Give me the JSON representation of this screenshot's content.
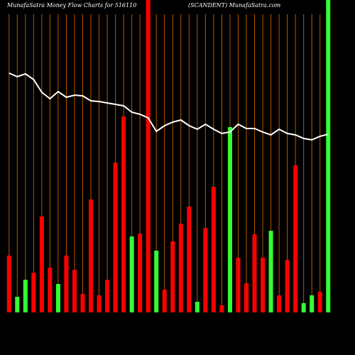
{
  "chart_data": {
    "type": "bar",
    "title": "MunafaSatra  Money Flow  Charts for 516110",
    "subtitle": "(SCANDENT) MunafaSatra.com",
    "categories": [
      null,
      null,
      null,
      null,
      null,
      null,
      null,
      null,
      null,
      null,
      null,
      null,
      null,
      null,
      null,
      null,
      null,
      null,
      null,
      null,
      null,
      null,
      null,
      null,
      null,
      null,
      null,
      null,
      null,
      null,
      null,
      null,
      null,
      null,
      null,
      null,
      null,
      null,
      null,
      null
    ],
    "values": [
      80,
      22,
      46,
      56,
      135,
      63,
      40,
      80,
      60,
      26,
      159,
      24,
      46,
      211,
      276,
      107,
      111,
      440,
      87,
      32,
      100,
      125,
      149,
      15,
      119,
      177,
      10,
      261,
      77,
      41,
      110,
      77,
      115,
      24,
      74,
      207,
      13,
      24,
      29,
      440
    ],
    "colors": [
      "#ff0000",
      "#33ff33",
      "#33ff33",
      "#ff0000",
      "#ff0000",
      "#ff0000",
      "#33ff33",
      "#ff0000",
      "#ff0000",
      "#ff0000",
      "#ff0000",
      "#ff0000",
      "#ff0000",
      "#ff0000",
      "#ff0000",
      "#33ff33",
      "#ff0000",
      "#ff0000",
      "#33ff33",
      "#ff0000",
      "#ff0000",
      "#ff0000",
      "#ff0000",
      "#33ff33",
      "#ff0000",
      "#ff0000",
      "#ff0000",
      "#33ff33",
      "#ff0000",
      "#ff0000",
      "#ff0000",
      "#ff0000",
      "#33ff33",
      "#ff0000",
      "#ff0000",
      "#ff0000",
      "#33ff33",
      "#33ff33",
      "#ff0000",
      "#33ff33"
    ],
    "line_values": [
      337,
      332,
      336,
      328,
      310,
      301,
      311,
      303,
      306,
      305,
      298,
      297,
      295,
      293,
      291,
      282,
      279,
      274,
      255,
      263,
      268,
      271,
      263,
      258,
      265,
      258,
      252,
      254,
      265,
      259,
      259,
      254,
      250,
      258,
      252,
      250,
      245,
      243,
      248,
      251
    ],
    "line_color": "#ffffff",
    "grid_color": "#b35900",
    "ylim": [
      0,
      440
    ],
    "grid": true
  }
}
